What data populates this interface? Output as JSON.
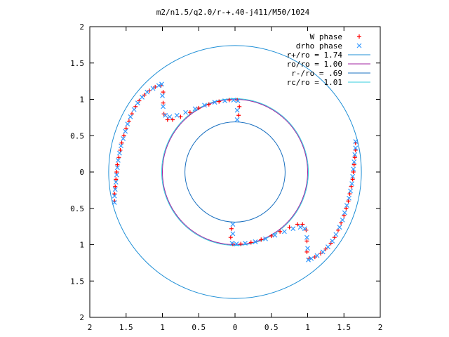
{
  "chart_data": {
    "type": "scatter",
    "title": "m2/n1.5/q2.0/r-+.40-j411/M50/1024",
    "xlim": [
      -2,
      2
    ],
    "ylim": [
      -2,
      2
    ],
    "x_tick_labels": [
      "2",
      "1.5",
      "1",
      "0.5",
      "0",
      "0.5",
      "1",
      "1.5",
      "2"
    ],
    "y_tick_labels": [
      "2",
      "1.5",
      "1",
      "0.5",
      "0",
      "0.5",
      "1",
      "1.5",
      "2"
    ],
    "x_tick_values": [
      -2,
      -1.5,
      -1,
      -0.5,
      0,
      0.5,
      1,
      1.5,
      2
    ],
    "y_tick_values": [
      2,
      1.5,
      1,
      0.5,
      0,
      -0.5,
      -1,
      -1.5,
      -2
    ],
    "grid": false,
    "legend_position": "top-right",
    "series": [
      {
        "name": "W phase",
        "marker": "+",
        "color": "#ff0000",
        "points": [
          [
            -1.66,
            -0.4
          ],
          [
            -1.66,
            -0.3
          ],
          [
            -1.65,
            -0.2
          ],
          [
            -1.64,
            -0.1
          ],
          [
            -1.63,
            0.0
          ],
          [
            -1.62,
            0.1
          ],
          [
            -1.6,
            0.2
          ],
          [
            -1.58,
            0.3
          ],
          [
            -1.56,
            0.4
          ],
          [
            -1.53,
            0.5
          ],
          [
            -1.5,
            0.6
          ],
          [
            -1.46,
            0.7
          ],
          [
            -1.42,
            0.8
          ],
          [
            -1.37,
            0.9
          ],
          [
            -1.32,
            0.98
          ],
          [
            -1.25,
            1.06
          ],
          [
            -1.18,
            1.12
          ],
          [
            -1.1,
            1.17
          ],
          [
            -1.02,
            1.19
          ],
          [
            -0.99,
            1.1
          ],
          [
            -0.99,
            0.95
          ],
          [
            -0.98,
            0.8
          ],
          [
            -0.93,
            0.72
          ],
          [
            -0.86,
            0.72
          ],
          [
            -0.75,
            0.76
          ],
          [
            -0.62,
            0.82
          ],
          [
            -0.5,
            0.88
          ],
          [
            -0.36,
            0.93
          ],
          [
            -0.22,
            0.97
          ],
          [
            -0.08,
            0.99
          ],
          [
            0.03,
            0.99
          ],
          [
            0.06,
            0.9
          ],
          [
            0.05,
            0.78
          ],
          [
            1.66,
            0.4
          ],
          [
            1.66,
            0.3
          ],
          [
            1.65,
            0.2
          ],
          [
            1.64,
            0.1
          ],
          [
            1.63,
            0.0
          ],
          [
            1.62,
            -0.1
          ],
          [
            1.6,
            -0.2
          ],
          [
            1.58,
            -0.3
          ],
          [
            1.56,
            -0.4
          ],
          [
            1.53,
            -0.5
          ],
          [
            1.5,
            -0.6
          ],
          [
            1.46,
            -0.7
          ],
          [
            1.42,
            -0.8
          ],
          [
            1.37,
            -0.9
          ],
          [
            1.32,
            -0.98
          ],
          [
            1.25,
            -1.06
          ],
          [
            1.18,
            -1.12
          ],
          [
            1.1,
            -1.17
          ],
          [
            1.02,
            -1.19
          ],
          [
            0.99,
            -1.1
          ],
          [
            0.99,
            -0.95
          ],
          [
            0.98,
            -0.8
          ],
          [
            0.93,
            -0.72
          ],
          [
            0.86,
            -0.72
          ],
          [
            0.75,
            -0.76
          ],
          [
            0.62,
            -0.82
          ],
          [
            0.5,
            -0.88
          ],
          [
            0.36,
            -0.93
          ],
          [
            0.22,
            -0.97
          ],
          [
            0.08,
            -0.99
          ],
          [
            -0.03,
            -0.99
          ],
          [
            -0.06,
            -0.9
          ],
          [
            -0.05,
            -0.78
          ]
        ]
      },
      {
        "name": "drho phase",
        "marker": "x",
        "color": "#3399ff",
        "points": [
          [
            -1.66,
            -0.42
          ],
          [
            -1.66,
            -0.33
          ],
          [
            -1.65,
            -0.24
          ],
          [
            -1.64,
            -0.14
          ],
          [
            -1.63,
            -0.04
          ],
          [
            -1.62,
            0.06
          ],
          [
            -1.61,
            0.16
          ],
          [
            -1.59,
            0.26
          ],
          [
            -1.57,
            0.36
          ],
          [
            -1.54,
            0.46
          ],
          [
            -1.51,
            0.56
          ],
          [
            -1.48,
            0.66
          ],
          [
            -1.44,
            0.76
          ],
          [
            -1.39,
            0.86
          ],
          [
            -1.34,
            0.95
          ],
          [
            -1.28,
            1.03
          ],
          [
            -1.21,
            1.1
          ],
          [
            -1.13,
            1.15
          ],
          [
            -1.05,
            1.19
          ],
          [
            -1.01,
            1.21
          ],
          [
            -1.0,
            1.05
          ],
          [
            -0.99,
            0.9
          ],
          [
            -0.96,
            0.78
          ],
          [
            -0.9,
            0.76
          ],
          [
            -0.8,
            0.78
          ],
          [
            -0.68,
            0.82
          ],
          [
            -0.55,
            0.87
          ],
          [
            -0.42,
            0.92
          ],
          [
            -0.28,
            0.96
          ],
          [
            -0.14,
            0.98
          ],
          [
            -0.02,
            0.99
          ],
          [
            0.04,
            0.98
          ],
          [
            0.03,
            0.85
          ],
          [
            0.03,
            0.72
          ],
          [
            1.66,
            0.42
          ],
          [
            1.66,
            0.33
          ],
          [
            1.65,
            0.24
          ],
          [
            1.64,
            0.14
          ],
          [
            1.63,
            0.04
          ],
          [
            1.62,
            -0.06
          ],
          [
            1.61,
            -0.16
          ],
          [
            1.59,
            -0.26
          ],
          [
            1.57,
            -0.36
          ],
          [
            1.54,
            -0.46
          ],
          [
            1.51,
            -0.56
          ],
          [
            1.48,
            -0.66
          ],
          [
            1.44,
            -0.76
          ],
          [
            1.39,
            -0.86
          ],
          [
            1.34,
            -0.95
          ],
          [
            1.28,
            -1.03
          ],
          [
            1.21,
            -1.1
          ],
          [
            1.13,
            -1.15
          ],
          [
            1.05,
            -1.19
          ],
          [
            1.01,
            -1.21
          ],
          [
            1.0,
            -1.05
          ],
          [
            0.99,
            -0.9
          ],
          [
            0.96,
            -0.78
          ],
          [
            0.9,
            -0.76
          ],
          [
            0.8,
            -0.78
          ],
          [
            0.68,
            -0.82
          ],
          [
            0.55,
            -0.87
          ],
          [
            0.42,
            -0.92
          ],
          [
            0.28,
            -0.96
          ],
          [
            0.14,
            -0.98
          ],
          [
            0.02,
            -0.99
          ],
          [
            -0.04,
            -0.98
          ],
          [
            -0.03,
            -0.85
          ],
          [
            -0.03,
            -0.72
          ]
        ]
      },
      {
        "name": "r+/ro = 1.74",
        "type": "circle",
        "radius": 1.74,
        "color": "#1f8fd6"
      },
      {
        "name": "ro/ro = 1.00",
        "type": "circle",
        "radius": 1.0,
        "color": "#a020a0"
      },
      {
        "name": "r-/ro = .69",
        "type": "circle",
        "radius": 0.69,
        "color": "#1a70c0"
      },
      {
        "name": "rc/ro = 1.01",
        "type": "circle",
        "radius": 1.01,
        "color": "#33ccdd"
      }
    ]
  }
}
